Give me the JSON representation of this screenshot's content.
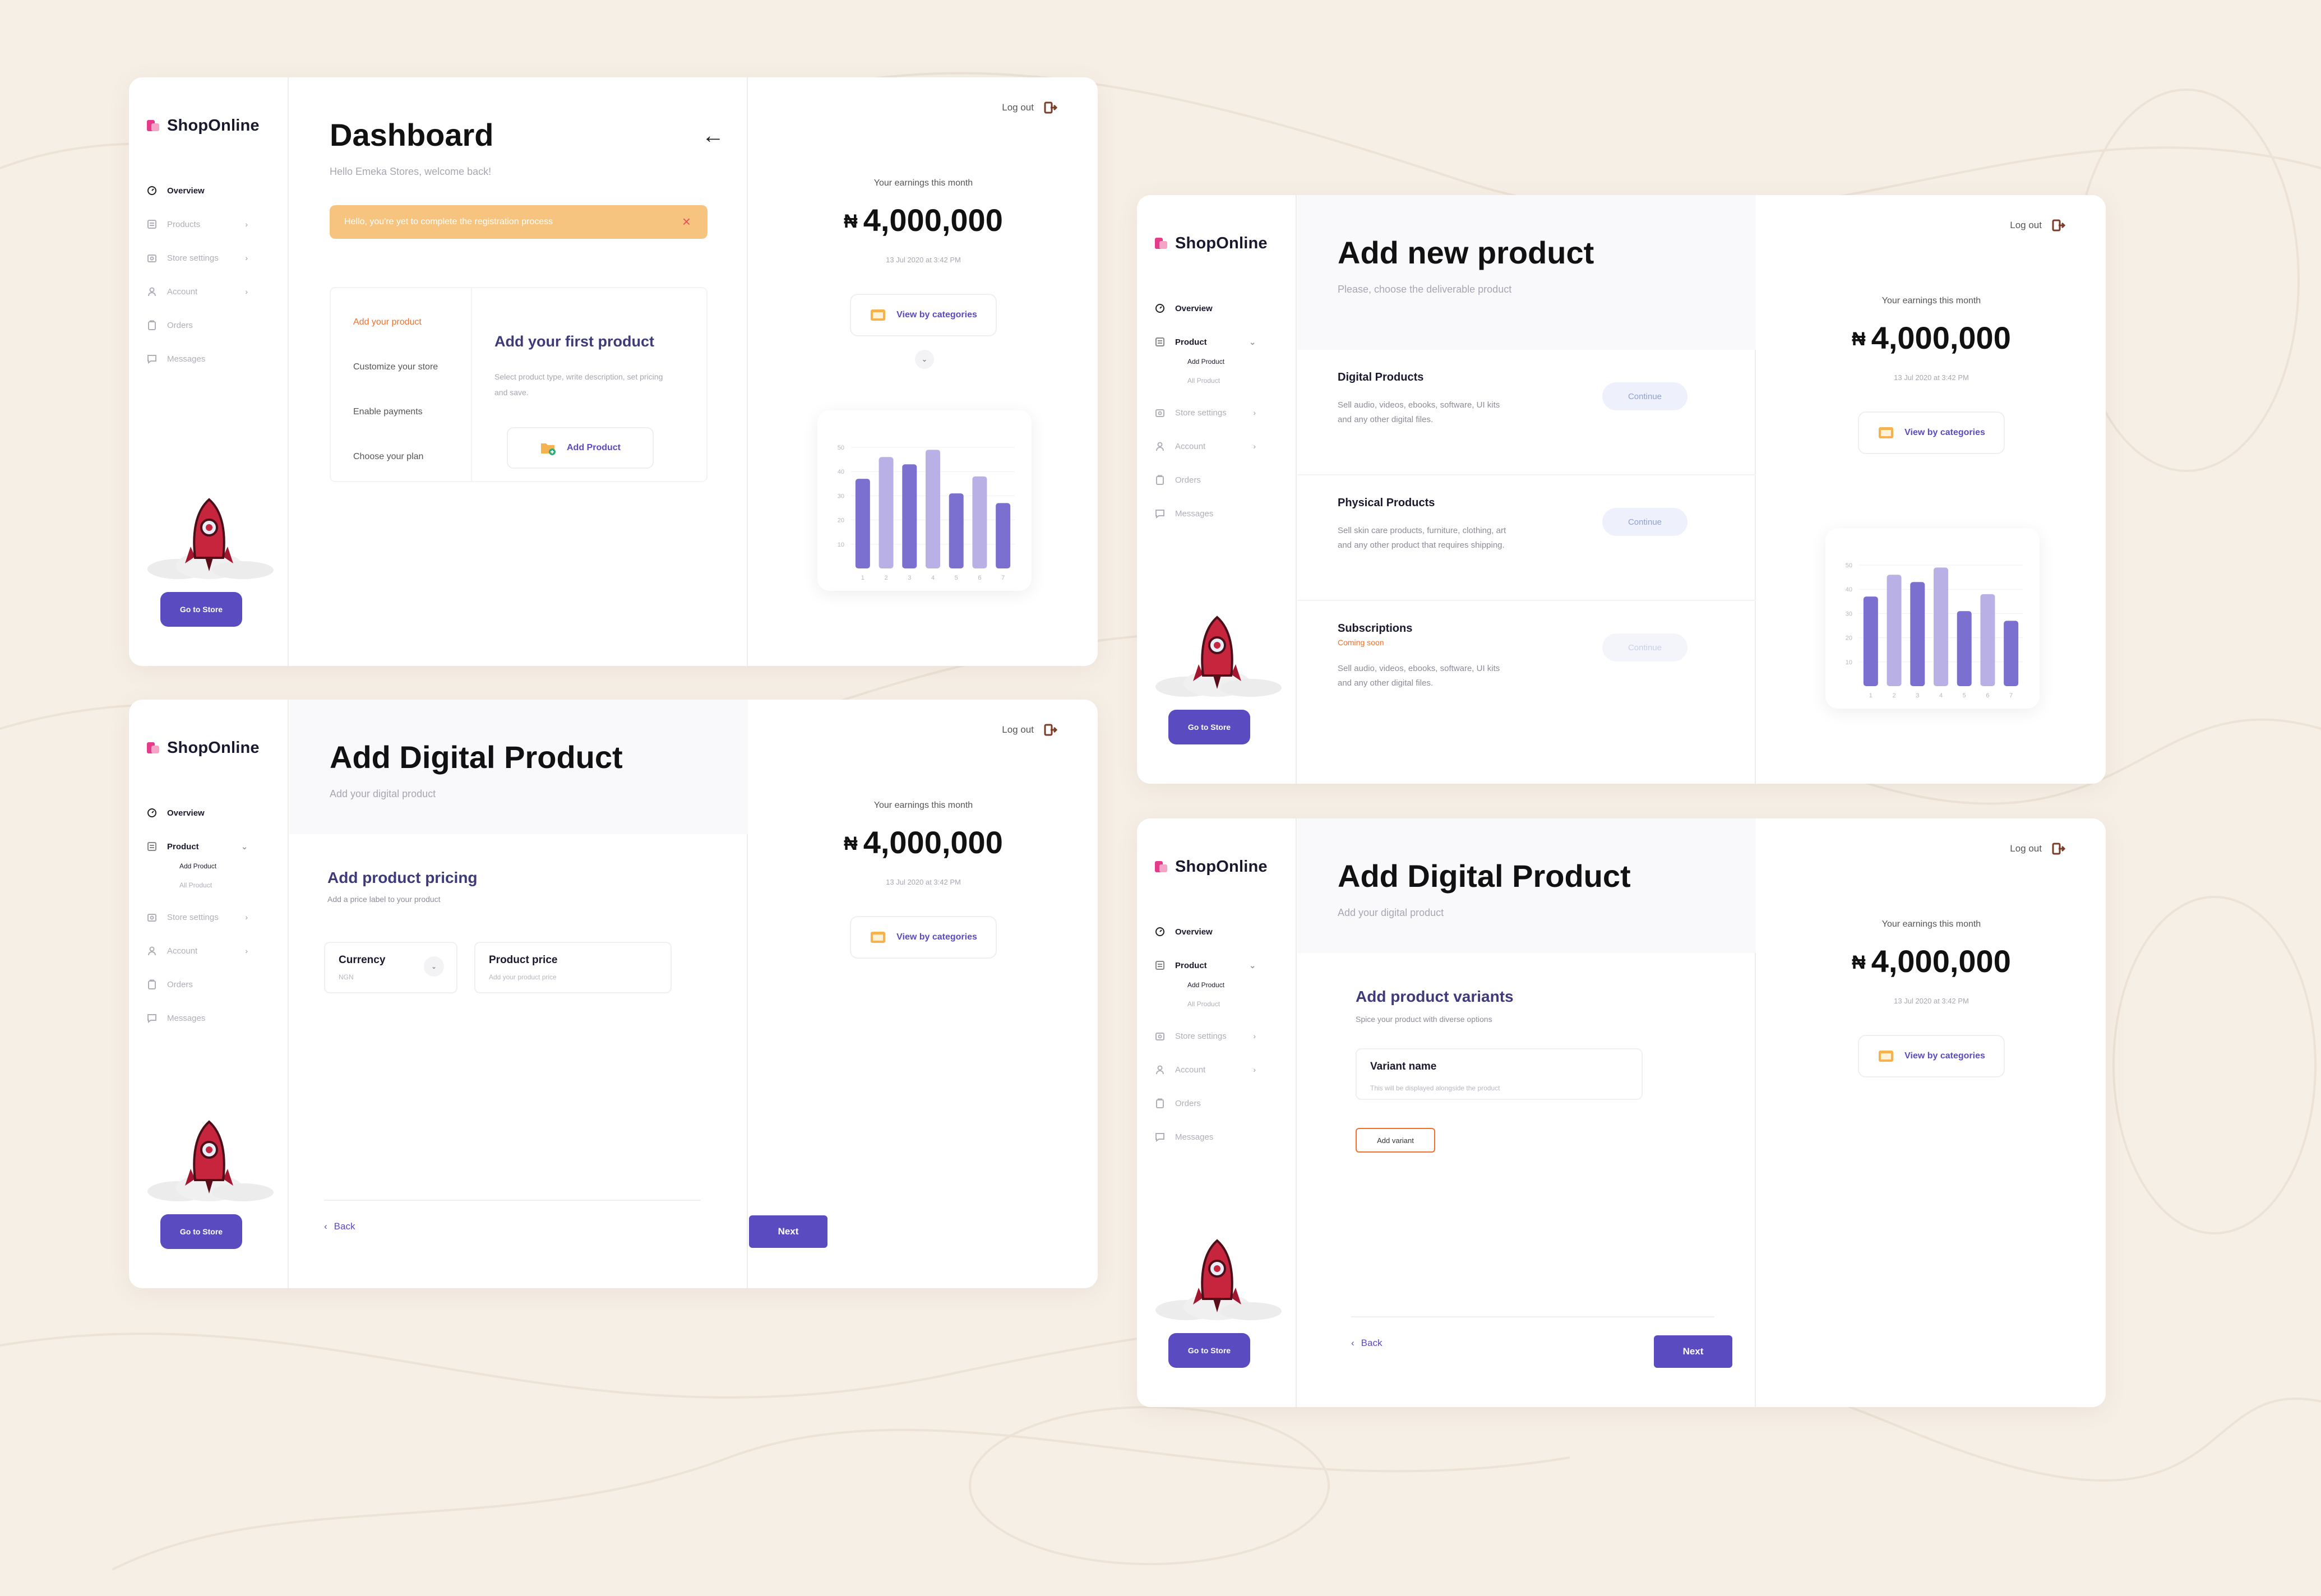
{
  "brand": {
    "name": "ShopOnline",
    "accent": "#5a4bc0",
    "logo_color": "#e63b8a"
  },
  "common": {
    "logout_label": "Log out",
    "earnings_label": "Your earnings this month",
    "currency_symbol": "₦",
    "earnings_value": "4,000,000",
    "earnings_date": "13 Jul 2020 at 3:42 PM",
    "view_categories_label": "View by categories",
    "go_to_store_label": "Go to Store"
  },
  "nav": {
    "overview": "Overview",
    "products": "Products",
    "product": "Product",
    "store_settings": "Store settings",
    "account": "Account",
    "orders": "Orders",
    "messages": "Messages",
    "sub_add_product": "Add Product",
    "sub_all_product": "All Product"
  },
  "dashboard": {
    "title": "Dashboard",
    "subtitle": "Hello Emeka Stores, welcome back!",
    "alert": "Hello, you're yet to complete the registration process",
    "steps": [
      "Add your product",
      "Customize your store",
      "Enable payments",
      "Choose your plan"
    ],
    "first_title": "Add your first product",
    "first_desc": "Select product type, write description, set pricing and save.",
    "add_product_label": "Add Product"
  },
  "pricing": {
    "title": "Add Digital Product",
    "subtitle": "Add your digital product",
    "section_title": "Add product pricing",
    "section_sub": "Add a price label to your product",
    "currency_label": "Currency",
    "currency_value": "NGN",
    "price_label": "Product price",
    "price_placeholder": "Add your product price",
    "back_label": "Back",
    "next_label": "Next"
  },
  "new_product": {
    "title": "Add new product",
    "subtitle": "Please, choose the deliverable product",
    "continue_label": "Continue",
    "options": [
      {
        "title": "Digital Products",
        "desc": "Sell audio, videos, ebooks, software, UI kits and any other digital files."
      },
      {
        "title": "Physical Products",
        "desc": "Sell skin care products, furniture, clothing, art and any other product that requires shipping."
      },
      {
        "title": "Subscriptions",
        "status": "Coming soon",
        "desc": "Sell audio, videos, ebooks, software, UI kits and any other digital files."
      }
    ]
  },
  "variants": {
    "title": "Add Digital Product",
    "subtitle": "Add your digital product",
    "section_title": "Add product variants",
    "section_sub": "Spice your product with diverse options",
    "variant_label": "Variant name",
    "variant_placeholder": "This will be displayed alongside the product",
    "add_variant_label": "Add variant",
    "back_label": "Back",
    "next_label": "Next"
  },
  "chart_data": {
    "type": "bar",
    "categories": [
      "1",
      "2",
      "3",
      "4",
      "5",
      "6",
      "7"
    ],
    "values": [
      37,
      46,
      43,
      49,
      31,
      38,
      27
    ],
    "yticks": [
      "10",
      "20",
      "30",
      "40",
      "50"
    ],
    "ylim": [
      0,
      50
    ],
    "colors": {
      "dark": "#7b70cf",
      "light": "#b9b1e6"
    }
  }
}
